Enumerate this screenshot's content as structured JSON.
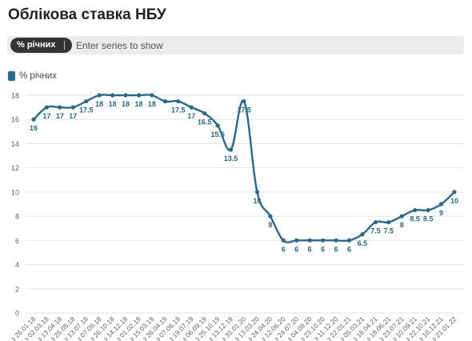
{
  "title": "Облікова ставка НБУ",
  "picker": {
    "chip_label": "% річних",
    "placeholder": "Enter series to show"
  },
  "colors": {
    "series": "#276b8c",
    "grid": "#e6e6e6",
    "axis_text": "#666666"
  },
  "chart_data": {
    "type": "line",
    "title": "Облікова ставка НБУ",
    "xlabel": "",
    "ylabel": "",
    "ylim": [
      0,
      18
    ],
    "yticks": [
      0,
      2,
      4,
      6,
      8,
      10,
      12,
      14,
      16,
      18
    ],
    "grid": true,
    "legend": "top-left",
    "categories": [
      "з 26.01.18",
      "з 02.03.18",
      "з 13.04.18",
      "з 25.05.18",
      "з 13.07.18",
      "з 07.09.18",
      "з 26.10.18",
      "з 14.12.18",
      "з 01.02.19",
      "з 15.03.19",
      "з 26.04.19",
      "з 07.06.19",
      "з 19.07.19",
      "з 06.09.19",
      "з 25.10.19",
      "з 13.12.19",
      "з 31.01.20",
      "з 13.03.20",
      "з 24.04.20",
      "з 12.06.20",
      "з 24.07.20",
      "з 04.09.20",
      "з 23.10.20",
      "з 11.12.20",
      "з 22.01.21",
      "з 05.03.21",
      "з 16.04.21",
      "з 18.06.21",
      "з 23.07.21",
      "з 10.09.21",
      "з 22.10.21",
      "з 10.12.21",
      "з 21.01.22"
    ],
    "series": [
      {
        "name": "% річних",
        "values": [
          16,
          17,
          17,
          17,
          17.5,
          18,
          18,
          18,
          18,
          18,
          17.5,
          17.5,
          17,
          16.5,
          15.5,
          13.5,
          17.5,
          10,
          8,
          6,
          6,
          6,
          6,
          6,
          6,
          6.5,
          7.5,
          7.5,
          8,
          8.5,
          8.5,
          9,
          10
        ],
        "labels": [
          "16",
          "17",
          "17",
          "17",
          "17.5",
          "18",
          "18",
          "18",
          "18",
          "18",
          "",
          "17.5",
          "17",
          "16.5",
          "15.5",
          "13.5",
          "17.5",
          "10",
          "8",
          "6",
          "6",
          "6",
          "6",
          "6",
          "6",
          "6.5",
          "7.5",
          "7.5",
          "8",
          "8.5",
          "8.5",
          "9",
          "10"
        ]
      }
    ]
  }
}
